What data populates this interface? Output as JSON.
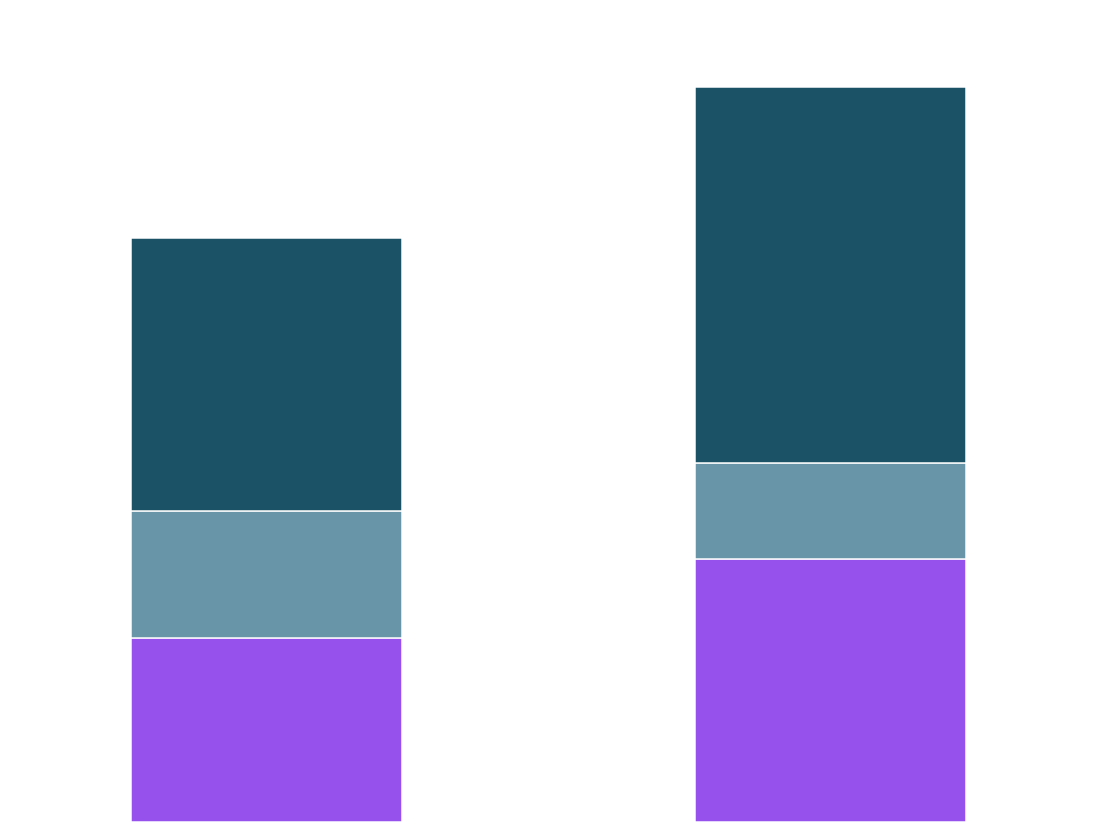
{
  "chart_data": {
    "type": "bar",
    "stacked": true,
    "categories": [
      "",
      ""
    ],
    "series": [
      {
        "values": [
          18.4,
          26.3
        ],
        "color": "#9650eb"
      },
      {
        "values": [
          12.7,
          9.6
        ],
        "color": "#6995a8"
      },
      {
        "values": [
          27.3,
          37.6
        ],
        "color": "#1b5266"
      }
    ],
    "title": "",
    "xlabel": "",
    "ylabel": "",
    "ylim": [
      0,
      82.2
    ],
    "grid": false,
    "legend": "none",
    "segment_separator_color": "#ffffff"
  }
}
